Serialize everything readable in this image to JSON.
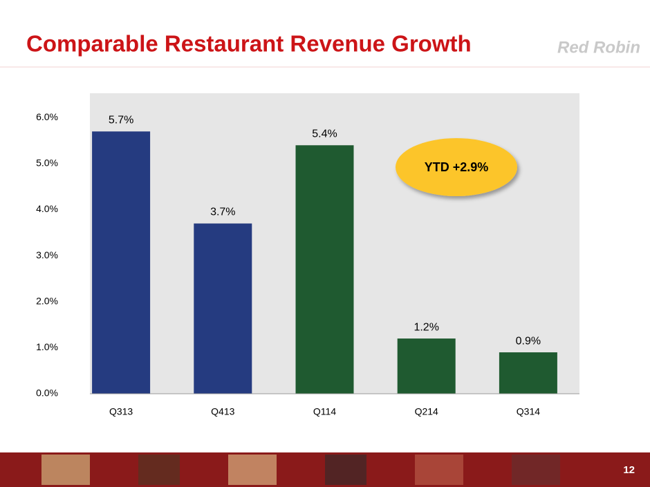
{
  "chart_data": {
    "type": "bar",
    "title": "Comparable Restaurant Revenue Growth",
    "logo": "Red Robin",
    "annotation": "YTD +2.9%",
    "page_number": "12",
    "categories": [
      "Q313",
      "Q413",
      "Q114",
      "Q214",
      "Q314"
    ],
    "values": [
      5.7,
      3.7,
      5.4,
      1.2,
      0.9
    ],
    "value_labels": [
      "5.7%",
      "3.7%",
      "5.4%",
      "1.2%",
      "0.9%"
    ],
    "colors": [
      "#253b80",
      "#253b80",
      "#1f5a30",
      "#1f5a30",
      "#1f5a30"
    ],
    "ylim": [
      0,
      6.5
    ],
    "yticks": [
      {
        "value": 0,
        "label": "0.0%"
      },
      {
        "value": 1,
        "label": "1.0%"
      },
      {
        "value": 2,
        "label": "2.0%"
      },
      {
        "value": 3,
        "label": "3.0%"
      },
      {
        "value": 4,
        "label": "4.0%"
      },
      {
        "value": 5,
        "label": "5.0%"
      },
      {
        "value": 6,
        "label": "6.0%"
      }
    ],
    "grid": false
  }
}
